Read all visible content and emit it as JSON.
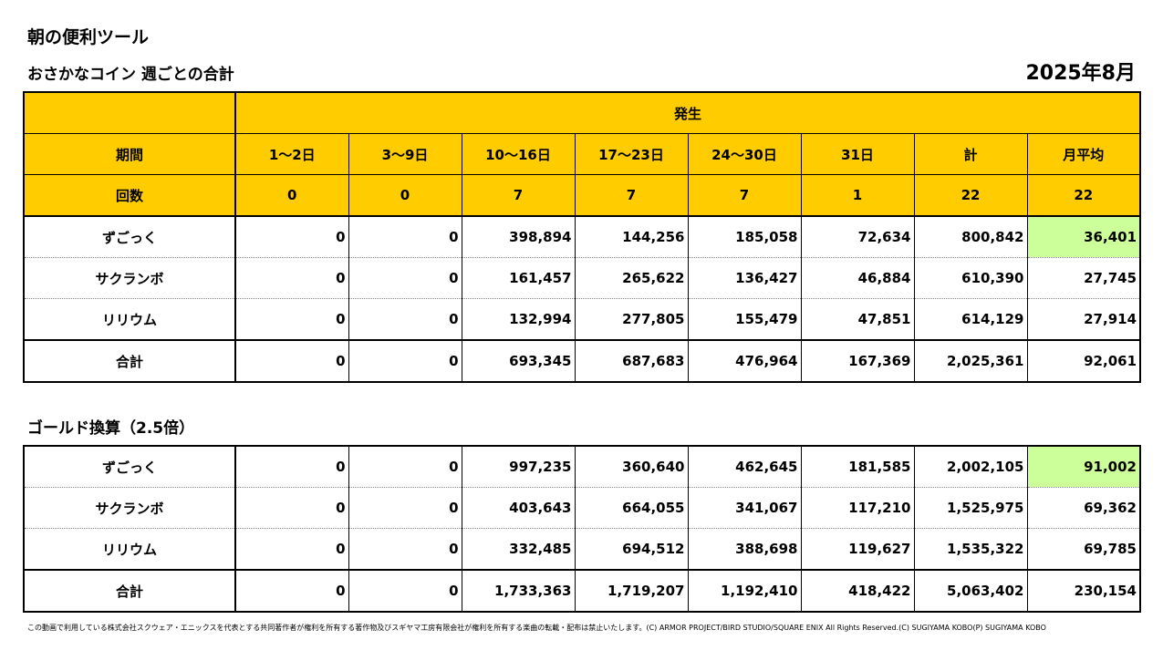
{
  "header": {
    "title": "朝の便利ツール",
    "subtitle": "おさかなコイン 週ごとの合計",
    "period": "2025年8月"
  },
  "table": {
    "group_header": "発生",
    "columns": [
      "期間",
      "1～2日",
      "3～9日",
      "10～16日",
      "17～23日",
      "24～30日",
      "31日",
      "計",
      "月平均"
    ],
    "counts": [
      "回数",
      "0",
      "0",
      "7",
      "7",
      "7",
      "1",
      "22",
      "22"
    ],
    "rows": [
      [
        "ずごっく",
        "0",
        "0",
        "398,894",
        "144,256",
        "185,058",
        "72,634",
        "800,842",
        "36,401"
      ],
      [
        "サクランボ",
        "0",
        "0",
        "161,457",
        "265,622",
        "136,427",
        "46,884",
        "610,390",
        "27,745"
      ],
      [
        "リリウム",
        "0",
        "0",
        "132,994",
        "277,805",
        "155,479",
        "47,851",
        "614,129",
        "27,914"
      ],
      [
        "合計",
        "0",
        "0",
        "693,345",
        "687,683",
        "476,964",
        "167,369",
        "2,025,361",
        "92,061"
      ]
    ]
  },
  "gold": {
    "title": "ゴールド換算（2.5倍）",
    "rows": [
      [
        "ずごっく",
        "0",
        "0",
        "997,235",
        "360,640",
        "462,645",
        "181,585",
        "2,002,105",
        "91,002"
      ],
      [
        "サクランボ",
        "0",
        "0",
        "403,643",
        "664,055",
        "341,067",
        "117,210",
        "1,525,975",
        "69,362"
      ],
      [
        "リリウム",
        "0",
        "0",
        "332,485",
        "694,512",
        "388,698",
        "119,627",
        "1,535,322",
        "69,785"
      ],
      [
        "合計",
        "0",
        "0",
        "1,733,363",
        "1,719,207",
        "1,192,410",
        "418,422",
        "5,063,402",
        "230,154"
      ]
    ]
  },
  "footer": "この動画で利用している株式会社スクウェア・エニックスを代表とする共同著作者が権利を所有する著作物及びスギヤマ工房有限会社が権利を所有する楽曲の転載・配布は禁止いたします。(C) ARMOR PROJECT/BIRD STUDIO/SQUARE ENIX All Rights Reserved.(C) SUGIYAMA KOBO(P) SUGIYAMA KOBO"
}
